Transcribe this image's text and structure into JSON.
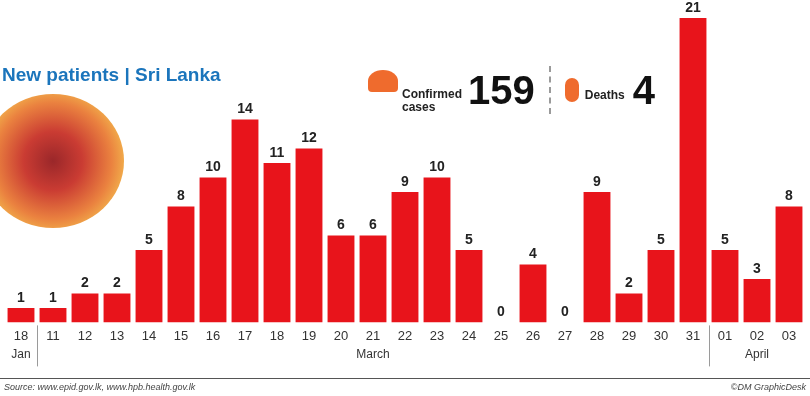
{
  "chart_data": {
    "type": "bar",
    "title": "New patients | Sri Lanka",
    "categories": [
      "18",
      "11",
      "12",
      "13",
      "14",
      "15",
      "16",
      "17",
      "18",
      "19",
      "20",
      "21",
      "22",
      "23",
      "24",
      "25",
      "26",
      "27",
      "28",
      "29",
      "30",
      "31",
      "01",
      "02",
      "03"
    ],
    "values": [
      1,
      1,
      2,
      2,
      5,
      8,
      10,
      14,
      11,
      12,
      6,
      6,
      9,
      10,
      5,
      0,
      4,
      0,
      9,
      2,
      5,
      21,
      5,
      3,
      8
    ],
    "color": "#e8141b",
    "ylim": [
      0,
      21
    ],
    "grid": false,
    "data_labels": true,
    "tick_labels": "x",
    "x_groups": [
      {
        "label": "Jan",
        "first": 0,
        "last": 0
      },
      {
        "label": "March",
        "first": 1,
        "last": 21
      },
      {
        "label": "April",
        "first": 22,
        "last": 24
      }
    ],
    "stats": [
      {
        "label": "Confirmed cases",
        "value": 159
      },
      {
        "label": "Deaths",
        "value": 4
      }
    ],
    "source": "Source: www.epid.gov.lk, www.hpb.health.gov.lk",
    "credit": "©DM GraphicDesk"
  }
}
